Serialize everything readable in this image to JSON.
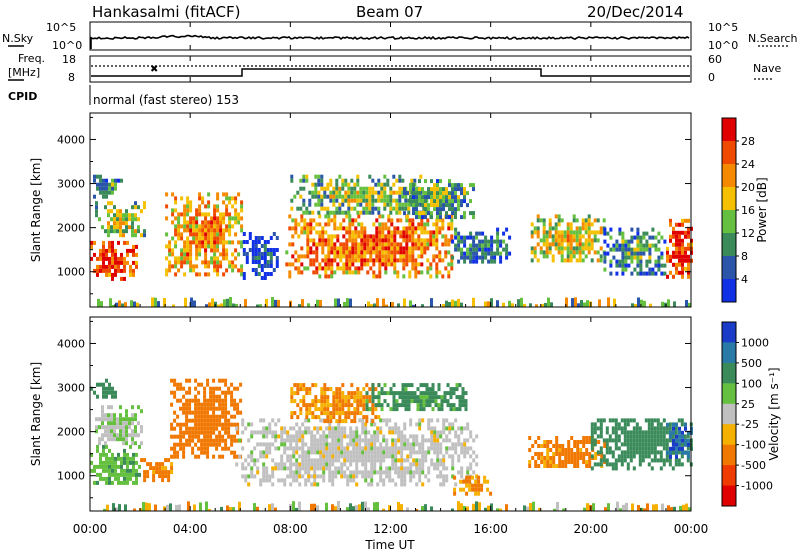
{
  "header": {
    "station": "Hankasalmi (fitACF)",
    "beam": "Beam 07",
    "date": "20/Dec/2014"
  },
  "status_panels": {
    "nsky_label": "N.Sky",
    "nsky_ticks": [
      "10^5",
      "10^0"
    ],
    "nsearch_label": "N.Search",
    "nsearch_ticks": [
      "10^5",
      "10^0"
    ],
    "freq_label_1": "Freq.",
    "freq_label_2": "[MHz]",
    "freq_ticks": [
      "18",
      "8"
    ],
    "nave_label": "Nave",
    "nave_ticks": [
      "60",
      "0"
    ],
    "cpid_label": "CPID",
    "cpid_value": "normal (fast stereo) 153"
  },
  "time_axis": {
    "ticks": [
      "00:00",
      "04:00",
      "08:00",
      "12:00",
      "16:00",
      "20:00",
      "00:00"
    ],
    "label": "Time UT"
  },
  "colors": {
    "power_scale": [
      "#1030e6",
      "#2a55a8",
      "#3a8a5a",
      "#66c040",
      "#f5c000",
      "#f58a00",
      "#f04a00",
      "#e00000"
    ],
    "velocity_scale": [
      "#1a3cc8",
      "#2a7aa8",
      "#3a8a5a",
      "#66c040",
      "#c0c0c0",
      "#f5b000",
      "#f07800",
      "#ef3a00",
      "#e00000"
    ]
  },
  "chart_data": [
    {
      "type": "heatmap",
      "name": "power",
      "ylabel": "Slant Range [km]",
      "ylim": [
        200,
        4600
      ],
      "yticks": [
        "4000",
        "3000",
        "2000",
        "1000"
      ],
      "xlim_hours": [
        0,
        24
      ],
      "colorbar": {
        "label": "Power [dB]",
        "ticks": [
          "28",
          "24",
          "20",
          "16",
          "12",
          "8",
          "4"
        ]
      },
      "echo_regions": [
        {
          "t0": 0.0,
          "t1": 1.8,
          "r0": 800,
          "r1": 1700,
          "level": 30
        },
        {
          "t0": 0.2,
          "t1": 2.2,
          "r0": 1800,
          "r1": 2600,
          "level": 18
        },
        {
          "t0": 0.0,
          "t1": 1.2,
          "r0": 2700,
          "r1": 3200,
          "level": 12
        },
        {
          "t0": 3.0,
          "t1": 6.0,
          "r0": 900,
          "r1": 2800,
          "level": 24
        },
        {
          "t0": 6.1,
          "t1": 7.5,
          "r0": 900,
          "r1": 1900,
          "level": 6
        },
        {
          "t0": 7.8,
          "t1": 14.5,
          "r0": 900,
          "r1": 2300,
          "level": 26
        },
        {
          "t0": 8.0,
          "t1": 13.5,
          "r0": 2300,
          "r1": 3200,
          "level": 16
        },
        {
          "t0": 12.5,
          "t1": 15.3,
          "r0": 2200,
          "r1": 3100,
          "level": 14
        },
        {
          "t0": 14.3,
          "t1": 16.8,
          "r0": 1200,
          "r1": 2000,
          "level": 10
        },
        {
          "t0": 17.6,
          "t1": 20.5,
          "r0": 1300,
          "r1": 2300,
          "level": 20
        },
        {
          "t0": 20.5,
          "t1": 23.0,
          "r0": 1000,
          "r1": 2000,
          "level": 12
        },
        {
          "t0": 23.0,
          "t1": 24.0,
          "r0": 900,
          "r1": 2200,
          "level": 30
        }
      ]
    },
    {
      "type": "heatmap",
      "name": "velocity",
      "ylabel": "Slant Range [km]",
      "ylim": [
        200,
        4600
      ],
      "yticks": [
        "4000",
        "3000",
        "2000",
        "1000"
      ],
      "xlim_hours": [
        0,
        24
      ],
      "colorbar": {
        "label": "Velocity [m s⁻¹]",
        "ticks": [
          "1000",
          "500",
          "100",
          "25",
          "-25",
          "-100",
          "-500",
          "-1000"
        ]
      },
      "echo_regions": [
        {
          "t0": 0.0,
          "t1": 2.0,
          "r0": 800,
          "r1": 1700,
          "velocity": 80
        },
        {
          "t0": 0.2,
          "t1": 2.0,
          "r0": 1700,
          "r1": 2600,
          "velocity": 20
        },
        {
          "t0": 0.0,
          "t1": 1.0,
          "r0": 2800,
          "r1": 3200,
          "velocity": 200
        },
        {
          "t0": 2.0,
          "t1": 3.2,
          "r0": 900,
          "r1": 1400,
          "velocity": -150
        },
        {
          "t0": 3.2,
          "t1": 6.0,
          "r0": 1400,
          "r1": 3200,
          "velocity": -200
        },
        {
          "t0": 5.8,
          "t1": 15.5,
          "r0": 800,
          "r1": 2300,
          "velocity": 0
        },
        {
          "t0": 8.0,
          "t1": 11.5,
          "r0": 2200,
          "r1": 3100,
          "velocity": -120
        },
        {
          "t0": 11.0,
          "t1": 15.0,
          "r0": 2500,
          "r1": 3100,
          "velocity": 150
        },
        {
          "t0": 14.5,
          "t1": 16.0,
          "r0": 600,
          "r1": 1000,
          "velocity": -100
        },
        {
          "t0": 17.5,
          "t1": 20.5,
          "r0": 1200,
          "r1": 1900,
          "velocity": -150
        },
        {
          "t0": 20.0,
          "t1": 24.0,
          "r0": 1200,
          "r1": 2300,
          "velocity": 300
        },
        {
          "t0": 23.0,
          "t1": 24.0,
          "r0": 1400,
          "r1": 2200,
          "velocity": 800
        }
      ]
    }
  ]
}
